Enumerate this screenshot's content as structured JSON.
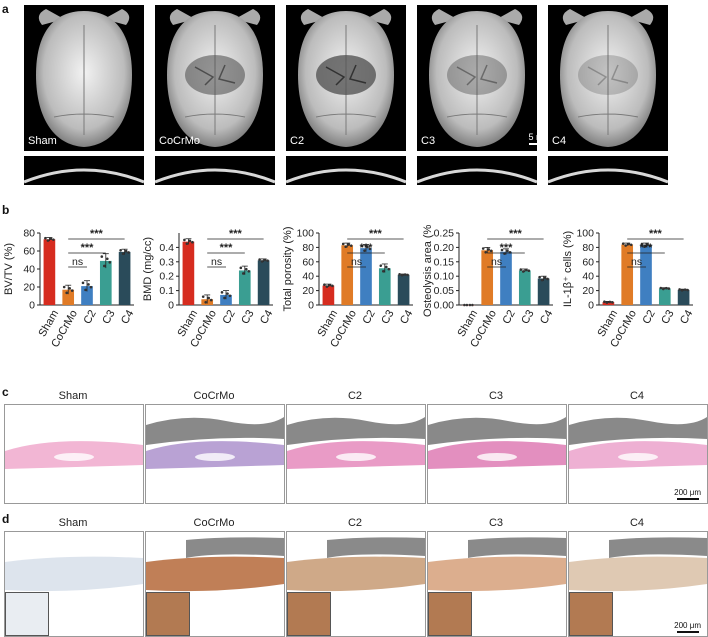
{
  "panels": {
    "a": "a",
    "b": "b",
    "c": "c",
    "d": "d"
  },
  "skull_images": {
    "labels": [
      "Sham",
      "CoCrMo",
      "C2",
      "C3",
      "C4"
    ],
    "scale_bar": "5 mm"
  },
  "chart_data": [
    {
      "type": "bar",
      "ylabel": "BV/TV (%)",
      "categories": [
        "Sham",
        "CoCrMo",
        "C2",
        "C3",
        "C4"
      ],
      "values": [
        73,
        17,
        21,
        49,
        59
      ],
      "errors": [
        2,
        5,
        6,
        8,
        3
      ],
      "ylim": [
        0,
        80
      ],
      "yticks": [
        0,
        20,
        40,
        60,
        80
      ],
      "colors": [
        "#d62c1f",
        "#e07b26",
        "#3f7fc1",
        "#3a9e92",
        "#2a4b5a"
      ],
      "annotations": [
        {
          "from": "CoCrMo",
          "to": "C2",
          "label": "ns"
        },
        {
          "from": "CoCrMo",
          "to": "C3",
          "label": "***"
        },
        {
          "from": "CoCrMo",
          "to": "C4",
          "label": "***"
        }
      ]
    },
    {
      "type": "bar",
      "ylabel": "BMD (mg/cc)",
      "categories": [
        "Sham",
        "CoCrMo",
        "C2",
        "C3",
        "C4"
      ],
      "values": [
        0.44,
        0.04,
        0.07,
        0.24,
        0.31
      ],
      "errors": [
        0.02,
        0.03,
        0.03,
        0.03,
        0.01
      ],
      "ylim": [
        0,
        0.5
      ],
      "yticks": [
        0.0,
        0.1,
        0.2,
        0.3,
        0.4
      ],
      "colors": [
        "#d62c1f",
        "#e07b26",
        "#3f7fc1",
        "#3a9e92",
        "#2a4b5a"
      ],
      "annotations": [
        {
          "from": "CoCrMo",
          "to": "C2",
          "label": "ns"
        },
        {
          "from": "CoCrMo",
          "to": "C3",
          "label": "***"
        },
        {
          "from": "CoCrMo",
          "to": "C4",
          "label": "***"
        }
      ]
    },
    {
      "type": "bar",
      "ylabel": "Total porosity (%)",
      "categories": [
        "Sham",
        "CoCrMo",
        "C2",
        "C3",
        "C4"
      ],
      "values": [
        27,
        83,
        79,
        51,
        42
      ],
      "errors": [
        2,
        3,
        5,
        6,
        1
      ],
      "ylim": [
        0,
        100
      ],
      "yticks": [
        0,
        20,
        40,
        60,
        80,
        100
      ],
      "colors": [
        "#d62c1f",
        "#e07b26",
        "#3f7fc1",
        "#3a9e92",
        "#2a4b5a"
      ],
      "annotations": [
        {
          "from": "CoCrMo",
          "to": "C2",
          "label": "ns"
        },
        {
          "from": "CoCrMo",
          "to": "C3",
          "label": "***"
        },
        {
          "from": "CoCrMo",
          "to": "C4",
          "label": "***"
        }
      ]
    },
    {
      "type": "bar",
      "ylabel": "Osteolysis area (%)",
      "categories": [
        "Sham",
        "CoCrMo",
        "C2",
        "C3",
        "C4"
      ],
      "values": [
        0.0,
        0.19,
        0.185,
        0.12,
        0.092
      ],
      "errors": [
        0.0,
        0.01,
        0.01,
        0.005,
        0.008
      ],
      "ylim": [
        0,
        0.25
      ],
      "yticks": [
        0.0,
        0.05,
        0.1,
        0.15,
        0.2,
        0.25
      ],
      "ytick_labels": [
        "0.00",
        "0.05",
        "0.10",
        "0.15",
        "0.20",
        "0.25"
      ],
      "colors": [
        "#d62c1f",
        "#e07b26",
        "#3f7fc1",
        "#3a9e92",
        "#2a4b5a"
      ],
      "annotations": [
        {
          "from": "CoCrMo",
          "to": "C2",
          "label": "ns"
        },
        {
          "from": "CoCrMo",
          "to": "C3",
          "label": "***"
        },
        {
          "from": "CoCrMo",
          "to": "C4",
          "label": "***"
        }
      ]
    },
    {
      "type": "bar",
      "ylabel": "IL-1β⁺ cells (%)",
      "categories": [
        "Sham",
        "CoCrMo",
        "C2",
        "C3",
        "C4"
      ],
      "values": [
        4,
        84,
        83,
        23,
        21
      ],
      "errors": [
        1,
        2,
        3,
        1,
        1
      ],
      "ylim": [
        0,
        100
      ],
      "yticks": [
        0,
        20,
        40,
        60,
        80,
        100
      ],
      "colors": [
        "#d62c1f",
        "#e07b26",
        "#3f7fc1",
        "#3a9e92",
        "#2a4b5a"
      ],
      "annotations": [
        {
          "from": "CoCrMo",
          "to": "C2",
          "label": "ns"
        },
        {
          "from": "CoCrMo",
          "to": "C3",
          "label": "***"
        },
        {
          "from": "CoCrMo",
          "to": "C4",
          "label": "***"
        }
      ]
    }
  ],
  "histology_c": {
    "labels": [
      "Sham",
      "CoCrMo",
      "C2",
      "C3",
      "C4"
    ],
    "scale_bar": "200 μm"
  },
  "histology_d": {
    "labels": [
      "Sham",
      "CoCrMo",
      "C2",
      "C3",
      "C4"
    ],
    "scale_bar": "200 μm"
  }
}
